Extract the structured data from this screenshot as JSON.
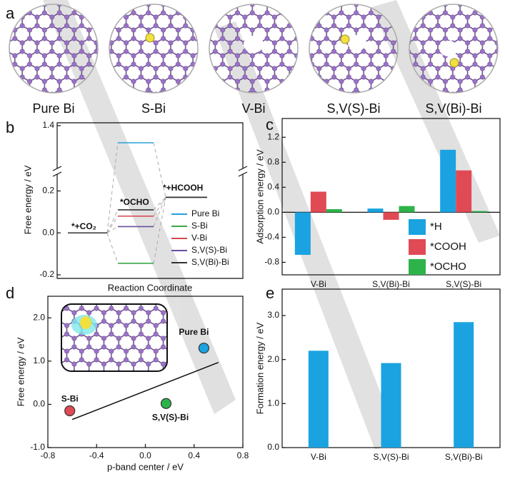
{
  "panel_a": {
    "panel_label": "a",
    "structures": [
      "Pure Bi",
      "S-Bi",
      "V-Bi",
      "S,V(S)-Bi",
      "S,V(Bi)-Bi"
    ]
  },
  "chart_data": [
    {
      "type": "energy-levels",
      "panel_label": "b",
      "x_label": "Reaction Coordinate",
      "y_label": "Free energy / eV",
      "categories": [
        "*+CO₂",
        "*OCHO",
        "*+HCOOH"
      ],
      "ylim": [
        -0.2,
        1.4
      ],
      "axis_break": [
        0.28,
        1.2
      ],
      "yticks": [
        -0.2,
        {
          "value": 0,
          "label": "0.0"
        },
        0.2,
        1.4
      ],
      "series": [
        {
          "name": "Pure Bi",
          "color": "#2aa0d8",
          "values": [
            0,
            1.32,
            0.17
          ]
        },
        {
          "name": "S-Bi",
          "color": "#3aa84a",
          "values": [
            0,
            -0.145,
            0.17
          ]
        },
        {
          "name": "V-Bi",
          "color": "#d8434e",
          "values": [
            0,
            0.08,
            0.17
          ]
        },
        {
          "name": "S,V(S)-Bi",
          "color": "#6a4c9c",
          "values": [
            0,
            0.03,
            0.17
          ]
        },
        {
          "name": "S,V(Bi)-Bi",
          "color": "#333333",
          "values": [
            0,
            0.11,
            0.17
          ]
        }
      ]
    },
    {
      "type": "bar",
      "panel_label": "c",
      "y_label": "Adsorption energy / eV",
      "categories": [
        "V-Bi",
        "S,V(Bi)-Bi",
        "S,V(S)-Bi"
      ],
      "ylim": [
        -1.0,
        1.5
      ],
      "yticks": [
        -0.8,
        -0.4,
        {
          "value": 0,
          "label": "0.0"
        },
        0.4,
        0.8,
        1.2
      ],
      "legend": "lower right",
      "series": [
        {
          "name": "*H",
          "color": "#1aa3e0",
          "values": [
            -0.68,
            0.06,
            1.0
          ]
        },
        {
          "name": "*COOH",
          "color": "#e04a55",
          "values": [
            0.33,
            -0.12,
            0.67
          ]
        },
        {
          "name": "*OCHO",
          "color": "#2db34a",
          "values": [
            0.05,
            0.1,
            0.02
          ]
        }
      ]
    },
    {
      "type": "scatter",
      "panel_label": "d",
      "x_label": "p-band center / eV",
      "y_label": "Free energy / eV",
      "xlim": [
        -0.8,
        0.8
      ],
      "ylim": [
        -1.0,
        2.5
      ],
      "xticks": [
        -0.8,
        -0.4,
        {
          "value": 0,
          "label": "0.0"
        },
        0.4,
        0.8
      ],
      "yticks": [
        {
          "value": -1,
          "label": "-1.0"
        },
        {
          "value": 0,
          "label": "0.0"
        },
        {
          "value": 1,
          "label": "1.0"
        },
        {
          "value": 2,
          "label": "2.0"
        }
      ],
      "points": [
        {
          "name": "S-Bi",
          "color": "#e04a55",
          "x": -0.62,
          "y": -0.15
        },
        {
          "name": "S,V(S)-Bi",
          "color": "#2db34a",
          "x": 0.17,
          "y": 0.02
        },
        {
          "name": "Pure Bi",
          "color": "#1aa3e0",
          "x": 0.48,
          "y": 1.3
        }
      ],
      "fit": {
        "x": [
          -0.6,
          0.6
        ],
        "y": [
          -0.35,
          0.97
        ]
      }
    },
    {
      "type": "bar",
      "panel_label": "e",
      "y_label": "Formation energy / eV",
      "categories": [
        "V-Bi",
        "S,V(S)-Bi",
        "S,V(Bi)-Bi"
      ],
      "ylim": [
        0,
        3.6
      ],
      "yticks": [
        {
          "value": 0,
          "label": "0.0"
        },
        {
          "value": 1,
          "label": "1.0"
        },
        {
          "value": 2,
          "label": "2.0"
        },
        {
          "value": 3,
          "label": "3.0"
        }
      ],
      "series": [
        {
          "name": "Formation energy",
          "color": "#1aa3e0",
          "values": [
            2.2,
            1.92,
            2.85
          ]
        }
      ]
    }
  ]
}
